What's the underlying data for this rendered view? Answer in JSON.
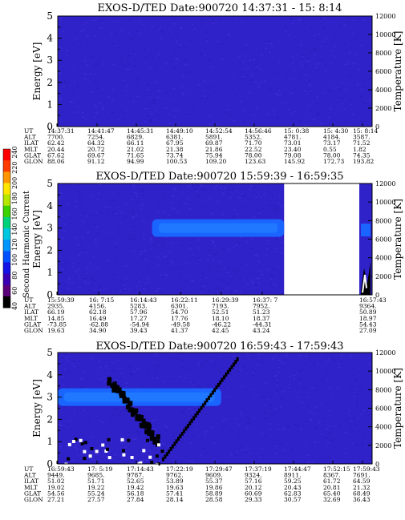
{
  "chart_data": [
    {
      "type": "heatmap",
      "title": "EXOS-D/TED  Date:900720  14:37:31 - 15: 8:14",
      "ylabel": "Energy [eV]",
      "y2label": "Temperature [K]",
      "ylim": [
        0,
        5
      ],
      "y2lim": [
        0,
        12000
      ],
      "yticks": [
        "0",
        "1",
        "2",
        "3",
        "4",
        "5"
      ],
      "y2ticks": [
        "0",
        "2000",
        "4000",
        "6000",
        "8000",
        "10000",
        "12000"
      ],
      "table_labels": [
        "UT",
        "ALT",
        "ILAT",
        "MLT",
        "GLAT",
        "GLON"
      ],
      "table": [
        [
          "14:37:31",
          "7700.",
          "62.42",
          "20.44",
          "67.62",
          "88.06"
        ],
        [
          "14:41:47",
          "7254.",
          "64.32",
          "20.72",
          "69.67",
          "91.12"
        ],
        [
          "14:45:31",
          "6829.",
          "66.11",
          "21.02",
          "71.65",
          "94.99"
        ],
        [
          "14:49:10",
          "6381.",
          "67.95",
          "21.38",
          "73.74",
          "100.53"
        ],
        [
          "14:52:54",
          "5891.",
          "69.87",
          "21.86",
          "75.94",
          "109.20"
        ],
        [
          "14:56:46",
          "5352.",
          "71.70",
          "22.52",
          "78.00",
          "123.63"
        ],
        [
          "15: 0:38",
          "4781.",
          "73.01",
          "23.40",
          "79.08",
          "145.92"
        ],
        [
          "15: 4:30",
          "4184.",
          "73.17",
          "0.55",
          "78.00",
          "172.73"
        ],
        [
          "15: 8:14",
          "3587.",
          "71.52",
          "1.82",
          "74.35",
          "193.82"
        ]
      ],
      "data_end_fraction": 1.0,
      "band": null
    },
    {
      "type": "heatmap",
      "title": "EXOS-D/TED  Date:900720  15:59:39 - 16:59:35",
      "ylabel": "Energy [eV]",
      "y2label": "Temperature [K]",
      "ylim": [
        0,
        5
      ],
      "y2lim": [
        0,
        12000
      ],
      "yticks": [
        "0",
        "1",
        "2",
        "3",
        "4",
        "5"
      ],
      "y2ticks": [
        "0",
        "2000",
        "4000",
        "6000",
        "8000",
        "10000",
        "12000"
      ],
      "table_labels": [
        "UT",
        "ALT",
        "ILAT",
        "MLT",
        "GLAT",
        "GLON"
      ],
      "table": [
        [
          "15:59:39",
          "2935.",
          "66.19",
          "14.85",
          "-73.85",
          "19.63"
        ],
        [
          "16: 7:15",
          "4156.",
          "62.18",
          "16.49",
          "-62.88",
          "34.90"
        ],
        [
          "16:14:43",
          "5283.",
          "57.96",
          "17.27",
          "-54.94",
          "39.43"
        ],
        [
          "16:22:11",
          "6301.",
          "54.70",
          "17.76",
          "-49.58",
          "41.37"
        ],
        [
          "16:29:39",
          "7193.",
          "52.51",
          "18.10",
          "-46.22",
          "42.45"
        ],
        [
          "16:37: 7",
          "7952.",
          "51.23",
          "18.37",
          "-44.31",
          "43.24"
        ],
        [
          "16:57:43",
          "9364.",
          "50.89",
          "18.97",
          "54.43",
          "27.09"
        ]
      ],
      "data_end_fraction": 0.72,
      "band": {
        "energy_center": 3.0,
        "start_fraction": 0.3
      }
    },
    {
      "type": "heatmap",
      "title": "EXOS-D/TED  Date:900720  16:59:43 - 17:59:43",
      "ylabel": "Energy [eV]",
      "y2label": "Temperature [K]",
      "ylim": [
        0,
        5
      ],
      "y2lim": [
        0,
        12000
      ],
      "yticks": [
        "0",
        "1",
        "2",
        "3",
        "4",
        "5"
      ],
      "y2ticks": [
        "0",
        "2000",
        "4000",
        "6000",
        "8000",
        "10000",
        "12000"
      ],
      "table_labels": [
        "UT",
        "ALT",
        "ILAT",
        "MLT",
        "GLAT",
        "GLON"
      ],
      "table": [
        [
          "16:59:43",
          "9449.",
          "51.02",
          "19.02",
          "54.56",
          "27.21"
        ],
        [
          "17: 5:19",
          "9685.",
          "51.71",
          "19.22",
          "55.24",
          "27.57"
        ],
        [
          "17:14:43",
          "9787.",
          "52.65",
          "19.42",
          "56.18",
          "27.84"
        ],
        [
          "17:22:19",
          "9762.",
          "53.89",
          "19.63",
          "57.41",
          "28.14"
        ],
        [
          "17:29:47",
          "9609.",
          "55.37",
          "19.86",
          "58.89",
          "28.58"
        ],
        [
          "17:37:19",
          "9324.",
          "57.16",
          "20.12",
          "60.69",
          "29.33"
        ],
        [
          "17:44:47",
          "8911.",
          "59.25",
          "20.43",
          "62.83",
          "30.57"
        ],
        [
          "17:52:15",
          "8367.",
          "61.72",
          "20.81",
          "65.40",
          "32.69"
        ],
        [
          "17:59:43",
          "7691.",
          "64.59",
          "21.32",
          "68.49",
          "36.43"
        ]
      ],
      "data_end_fraction": 1.0,
      "band": {
        "energy_center": 3.0,
        "start_fraction": 0.0,
        "end_fraction": 0.52
      }
    }
  ],
  "colorbar": {
    "label": "Second Harmonic Current",
    "ticks": [
      "40",
      "60",
      "80",
      "100",
      "120",
      "140",
      "160",
      "180",
      "200",
      "220",
      "240"
    ],
    "colors": [
      "#000000",
      "#5a007a",
      "#3a00b4",
      "#1414e6",
      "#0050ff",
      "#0096ff",
      "#00c8e0",
      "#00d27a",
      "#3cd200",
      "#b4e600",
      "#ffe600",
      "#ff9600",
      "#ff3c00",
      "#ff0000"
    ]
  }
}
